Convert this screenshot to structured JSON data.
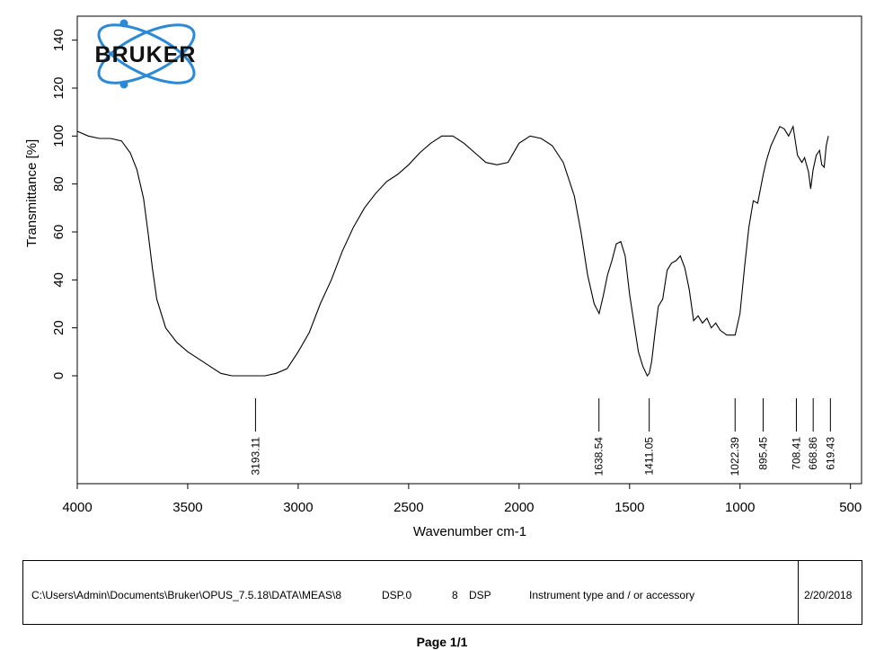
{
  "logo": {
    "text": "BRUKER",
    "colors": {
      "orbit": "#2a8ad8",
      "text": "#111111"
    }
  },
  "chart_data": {
    "type": "line",
    "title": "",
    "xlabel": "Wavenumber cm-1",
    "ylabel": "Transmittance [%]",
    "xlim": [
      4000,
      450
    ],
    "x_reversed": true,
    "ylim": [
      -45,
      150
    ],
    "x_ticks": [
      4000,
      3500,
      3000,
      2500,
      2000,
      1500,
      1000,
      500
    ],
    "y_ticks": [
      0,
      20,
      40,
      60,
      80,
      100,
      120,
      140
    ],
    "grid": false,
    "line_color": "#000000",
    "series": [
      {
        "name": "",
        "x": [
          4000,
          3950,
          3900,
          3850,
          3800,
          3760,
          3730,
          3700,
          3680,
          3660,
          3640,
          3600,
          3550,
          3500,
          3450,
          3400,
          3350,
          3300,
          3250,
          3200,
          3150,
          3100,
          3050,
          3000,
          2950,
          2900,
          2850,
          2800,
          2750,
          2700,
          2650,
          2600,
          2550,
          2500,
          2450,
          2400,
          2350,
          2300,
          2250,
          2200,
          2150,
          2100,
          2050,
          2000,
          1950,
          1900,
          1850,
          1800,
          1750,
          1720,
          1690,
          1660,
          1638,
          1620,
          1600,
          1580,
          1560,
          1540,
          1520,
          1500,
          1480,
          1460,
          1440,
          1420,
          1411,
          1400,
          1385,
          1370,
          1350,
          1330,
          1310,
          1290,
          1270,
          1250,
          1230,
          1210,
          1190,
          1170,
          1150,
          1130,
          1110,
          1090,
          1060,
          1040,
          1022,
          1000,
          980,
          960,
          940,
          920,
          895,
          880,
          860,
          840,
          820,
          800,
          780,
          760,
          740,
          720,
          708,
          690,
          680,
          669,
          655,
          640,
          630,
          619,
          610,
          600
        ],
        "y": [
          102,
          100,
          99,
          99,
          98,
          93,
          86,
          74,
          60,
          45,
          32,
          20,
          14,
          10,
          7,
          4,
          1,
          0,
          0,
          0,
          0,
          1,
          3,
          10,
          18,
          30,
          40,
          52,
          62,
          70,
          76,
          81,
          84,
          88,
          93,
          97,
          100,
          100,
          97,
          93,
          89,
          88,
          89,
          97,
          100,
          99,
          96,
          89,
          75,
          60,
          42,
          30,
          26,
          33,
          42,
          48,
          55,
          56,
          50,
          34,
          22,
          10,
          4,
          0,
          1,
          6,
          18,
          29,
          32,
          44,
          47,
          48,
          50,
          45,
          36,
          23,
          25,
          22,
          24,
          20,
          22,
          19,
          17,
          17,
          17,
          26,
          45,
          62,
          73,
          72,
          84,
          90,
          96,
          100,
          104,
          103,
          100,
          104,
          92,
          89,
          91,
          85,
          78,
          86,
          92,
          94,
          88,
          87,
          96,
          100
        ]
      }
    ],
    "peak_labels": [
      3193.11,
      1638.54,
      1411.05,
      1022.39,
      895.45,
      708.41,
      668.86,
      619.43
    ]
  },
  "footer": {
    "path": "C:\\Users\\Admin\\Documents\\Bruker\\OPUS_7.5.18\\DATA\\MEAS\\8",
    "file": "DSP.0",
    "sample_no": "8",
    "sample_name": "DSP",
    "instrument": "Instrument type and / or accessory",
    "date": "2/20/2018"
  },
  "page_label": "Page 1/1"
}
